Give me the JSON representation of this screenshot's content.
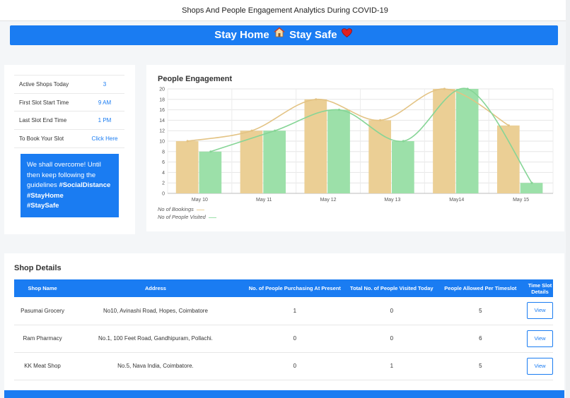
{
  "header": {
    "title": "Shops And People Engagement Analytics During COVID-19"
  },
  "banner": {
    "text_1": "Stay Home",
    "text_2": "Stay Safe",
    "icon_1": "house-icon",
    "icon_2": "heart-icon"
  },
  "info": {
    "rows": [
      {
        "label": "Active Shops Today",
        "value": "3"
      },
      {
        "label": "First Slot Start Time",
        "value": "9 AM"
      },
      {
        "label": "Last Slot End Time",
        "value": "1 PM"
      },
      {
        "label": "To Book Your Slot",
        "value": "Click Here"
      }
    ]
  },
  "quote": {
    "line_1": "We shall overcome! Until then keep following the guidelines",
    "tag_1": "#SocialDistance",
    "tag_2": "#StayHome",
    "tag_3": "#StaySafe"
  },
  "chart_panel": {
    "title": "People Engagement"
  },
  "chart_data": {
    "type": "bar",
    "categories": [
      "May 10",
      "May 11",
      "May 12",
      "May 13",
      "May14",
      "May 15"
    ],
    "ylim": [
      0,
      20
    ],
    "yticks": [
      0,
      2,
      4,
      6,
      8,
      10,
      12,
      14,
      16,
      18,
      20
    ],
    "grid": true,
    "legend_placement": "bottom-left",
    "series": [
      {
        "name": "No of Bookings",
        "color": "#ebcf95",
        "values": [
          10,
          12,
          18,
          14,
          20,
          13
        ]
      },
      {
        "name": "No of People Visited",
        "color": "#9ce0a9",
        "values": [
          8,
          12,
          16,
          10,
          20,
          2
        ]
      }
    ]
  },
  "shops": {
    "title": "Shop Details",
    "headers": [
      "Shop Name",
      "Address",
      "No. of People Purchasing At Present",
      "Total No. of People Visited Today",
      "People Allowed Per Timeslot",
      "Time Slot Details"
    ],
    "rows": [
      {
        "name": "Pasumai Grocery",
        "address": "No10, Avinashi Road, Hopes, Coimbatore",
        "present": "1",
        "visited": "0",
        "allowed": "5",
        "action": "View"
      },
      {
        "name": "Ram Pharmacy",
        "address": "No.1, 100 Feet Road, Gandhipuram, Pollachi.",
        "present": "0",
        "visited": "0",
        "allowed": "6",
        "action": "View"
      },
      {
        "name": "KK Meat Shop",
        "address": "No.5, Nava India, Coimbatore.",
        "present": "0",
        "visited": "1",
        "allowed": "5",
        "action": "View"
      }
    ]
  }
}
